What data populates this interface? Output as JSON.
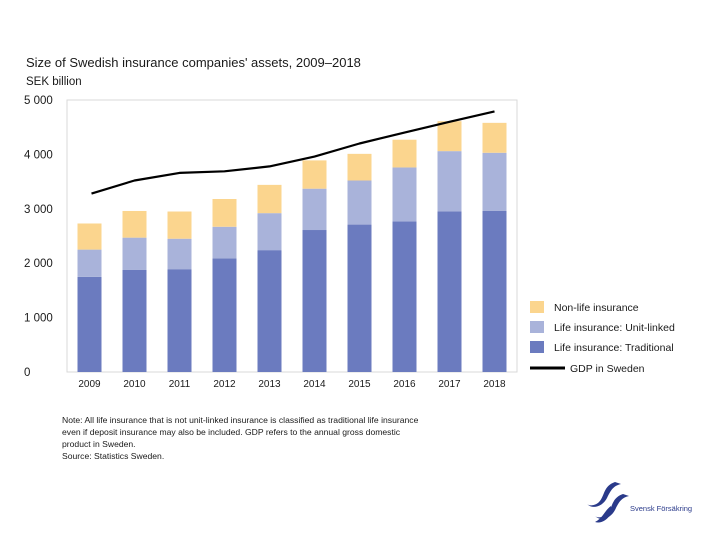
{
  "chart_data": {
    "type": "bar",
    "stacked": true,
    "title": "Size of Swedish insurance companies' assets, 2009–2018",
    "ylabel": "SEK billion",
    "categories": [
      "2009",
      "2010",
      "2011",
      "2012",
      "2013",
      "2014",
      "2015",
      "2016",
      "2017",
      "2018"
    ],
    "ylim": [
      0,
      5000
    ],
    "yticks": [
      0,
      1000,
      2000,
      3000,
      4000,
      5000
    ],
    "ytick_labels": [
      "0",
      "1 000",
      "2 000",
      "3 000",
      "4 000",
      "5 000"
    ],
    "grid": false,
    "legend_position": "right",
    "series": [
      {
        "name": "Life insurance: Traditional",
        "kind": "bar",
        "color": "#6b7bbf",
        "values": [
          1750,
          1880,
          1890,
          2090,
          2240,
          2610,
          2710,
          2770,
          2950,
          2960
        ]
      },
      {
        "name": "Life insurance: Unit-linked",
        "kind": "bar",
        "color": "#a9b3da",
        "values": [
          500,
          590,
          560,
          580,
          680,
          760,
          810,
          990,
          1110,
          1070
        ]
      },
      {
        "name": "Non-life insurance",
        "kind": "bar",
        "color": "#fbd58e",
        "values": [
          480,
          490,
          500,
          510,
          520,
          520,
          490,
          510,
          550,
          550
        ]
      },
      {
        "name": "GDP in Sweden",
        "kind": "line",
        "color": "#000000",
        "values": [
          3280,
          3520,
          3660,
          3690,
          3780,
          3960,
          4200,
          4400,
          4600,
          4790
        ]
      }
    ]
  },
  "notes": {
    "line1": "Note: All life insurance that is not unit-linked insurance is classified as traditional life insurance",
    "line2": "even if deposit insurance may also be included. GDP refers to the annual gross domestic",
    "line3": "product in Sweden.",
    "line4": "Source: Statistics Sweden."
  },
  "logo": {
    "text": "Svensk Försäkring",
    "color": "#2a3a8a"
  }
}
